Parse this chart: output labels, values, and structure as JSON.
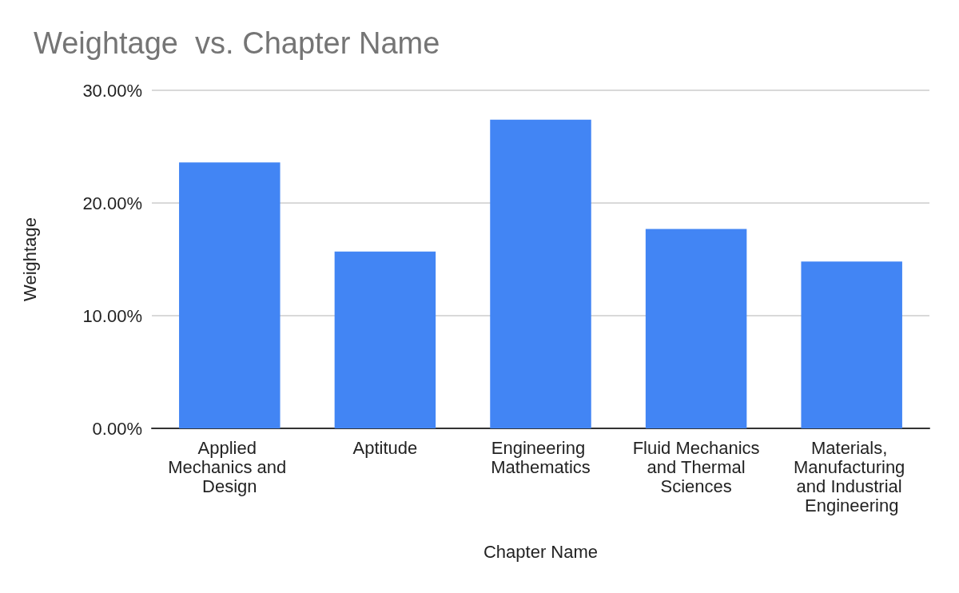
{
  "chart_data": {
    "type": "bar",
    "title": "Weightage  vs. Chapter Name",
    "xlabel": "Chapter Name",
    "ylabel": "Weightage",
    "categories": [
      "Applied Mechanics and Design",
      "Aptitude",
      "Engineering Mathematics",
      "Fluid Mechanics and Thermal Sciences",
      "Materials, Manufacturing and Industrial Engineering"
    ],
    "values": [
      23.6,
      15.7,
      27.4,
      17.7,
      14.8
    ],
    "color": "#4285f4",
    "ylim": [
      0,
      30
    ],
    "yticks": [
      {
        "value": 0,
        "label": "0.00%"
      },
      {
        "value": 10,
        "label": "10.00%"
      },
      {
        "value": 20,
        "label": "20.00%"
      },
      {
        "value": 30,
        "label": "30.00%"
      }
    ],
    "grid": "y"
  }
}
